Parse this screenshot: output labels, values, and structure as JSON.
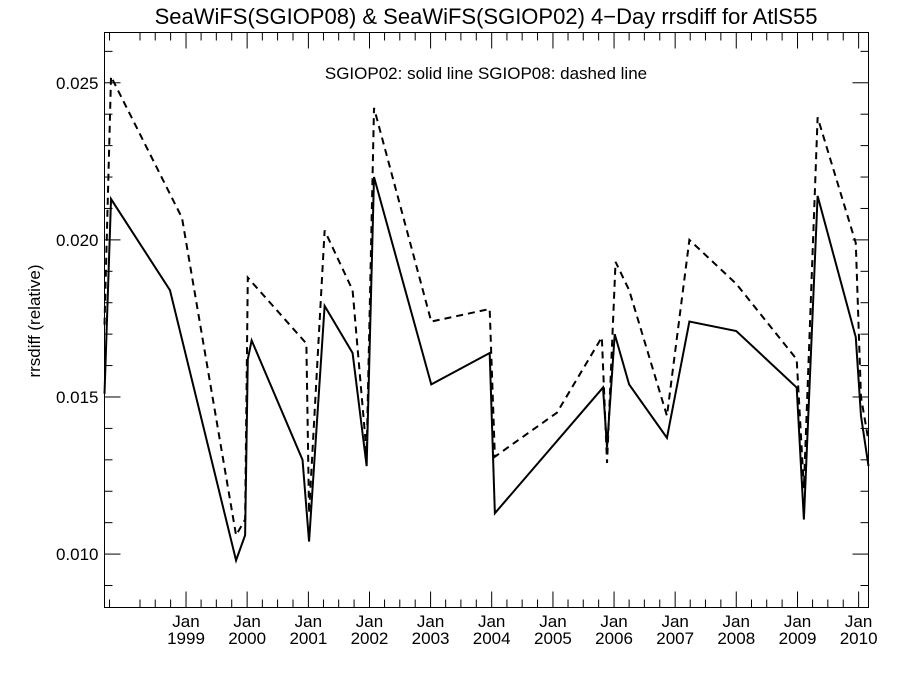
{
  "chart_data": {
    "type": "line",
    "title": "SeaWiFS(SGIOP08) & SeaWiFS(SGIOP02) 4−Day rrsdiff for AtlS55",
    "ylabel": "rrsdiff (relative)",
    "xlabel": "",
    "annotation": "SGIOP02: solid line   SGIOP08: dashed line",
    "x_range": [
      "1997-09-01",
      "2010-03-01"
    ],
    "ylim": [
      0.0083,
      0.0266
    ],
    "y_ticks": [
      0.01,
      0.015,
      0.02,
      0.025
    ],
    "y_tick_labels": [
      "0.010",
      "0.015",
      "0.020",
      "0.025"
    ],
    "x_ticks": [
      {
        "date": "1999-01-01",
        "month": "Jan",
        "year": "1999"
      },
      {
        "date": "2000-01-01",
        "month": "Jan",
        "year": "2000"
      },
      {
        "date": "2001-01-01",
        "month": "Jan",
        "year": "2001"
      },
      {
        "date": "2002-01-01",
        "month": "Jan",
        "year": "2002"
      },
      {
        "date": "2003-01-01",
        "month": "Jan",
        "year": "2003"
      },
      {
        "date": "2004-01-01",
        "month": "Jan",
        "year": "2004"
      },
      {
        "date": "2005-01-01",
        "month": "Jan",
        "year": "2005"
      },
      {
        "date": "2006-01-01",
        "month": "Jan",
        "year": "2006"
      },
      {
        "date": "2007-01-01",
        "month": "Jan",
        "year": "2007"
      },
      {
        "date": "2008-01-01",
        "month": "Jan",
        "year": "2008"
      },
      {
        "date": "2009-01-01",
        "month": "Jan",
        "year": "2009"
      },
      {
        "date": "2010-01-01",
        "month": "Jan",
        "year": "2010"
      }
    ],
    "legend": "",
    "grid": false,
    "series": [
      {
        "style": "solid",
        "points": [
          [
            "1997-09-01",
            0.0151
          ],
          [
            "1997-10-10",
            0.0213
          ],
          [
            "1998-09-27",
            0.0184
          ],
          [
            "1999-10-27",
            0.0098
          ],
          [
            "1999-12-20",
            0.0106
          ],
          [
            "2000-01-05",
            0.0162
          ],
          [
            "2000-01-28",
            0.0168
          ],
          [
            "2000-11-27",
            0.013
          ],
          [
            "2001-01-05",
            0.0104
          ],
          [
            "2001-04-08",
            0.0179
          ],
          [
            "2001-09-22",
            0.0164
          ],
          [
            "2001-12-15",
            0.0128
          ],
          [
            "2002-01-28",
            0.022
          ],
          [
            "2003-01-05",
            0.0154
          ],
          [
            "2003-12-20",
            0.0164
          ],
          [
            "2004-01-20",
            0.0113
          ],
          [
            "2005-10-27",
            0.0153
          ],
          [
            "2005-11-20",
            0.0134
          ],
          [
            "2006-01-05",
            0.017
          ],
          [
            "2006-04-01",
            0.0154
          ],
          [
            "2006-11-13",
            0.0137
          ],
          [
            "2007-03-27",
            0.0174
          ],
          [
            "2008-01-01",
            0.0171
          ],
          [
            "2008-12-27",
            0.0153
          ],
          [
            "2009-02-08",
            0.0111
          ],
          [
            "2009-05-01",
            0.0214
          ],
          [
            "2009-12-15",
            0.0169
          ],
          [
            "2010-01-15",
            0.0144
          ],
          [
            "2010-03-01",
            0.0128
          ]
        ]
      },
      {
        "style": "dashed",
        "points": [
          [
            "1997-09-01",
            0.0173
          ],
          [
            "1997-10-10",
            0.0252
          ],
          [
            "1998-12-08",
            0.0207
          ],
          [
            "1999-10-27",
            0.0106
          ],
          [
            "1999-12-20",
            0.0111
          ],
          [
            "2000-01-05",
            0.0188
          ],
          [
            "2000-12-20",
            0.0167
          ],
          [
            "2001-01-05",
            0.0113
          ],
          [
            "2001-04-08",
            0.0203
          ],
          [
            "2001-09-22",
            0.0184
          ],
          [
            "2001-12-15",
            0.0132
          ],
          [
            "2002-01-28",
            0.0242
          ],
          [
            "2003-01-05",
            0.0174
          ],
          [
            "2003-12-20",
            0.0178
          ],
          [
            "2004-01-20",
            0.0131
          ],
          [
            "2005-01-25",
            0.0145
          ],
          [
            "2005-10-20",
            0.0169
          ],
          [
            "2005-11-20",
            0.0129
          ],
          [
            "2006-01-10",
            0.0193
          ],
          [
            "2006-04-01",
            0.0184
          ],
          [
            "2006-11-13",
            0.0144
          ],
          [
            "2007-03-27",
            0.02
          ],
          [
            "2008-01-01",
            0.0186
          ],
          [
            "2008-12-27",
            0.0162
          ],
          [
            "2009-02-08",
            0.0121
          ],
          [
            "2009-05-01",
            0.0239
          ],
          [
            "2009-12-15",
            0.0199
          ],
          [
            "2010-01-15",
            0.015
          ],
          [
            "2010-03-01",
            0.0136
          ]
        ]
      }
    ]
  }
}
